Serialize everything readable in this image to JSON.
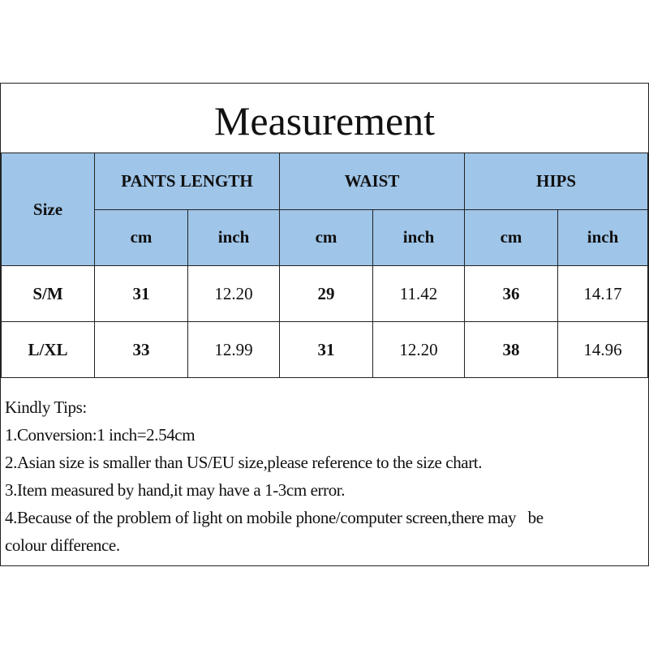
{
  "title": "Measurement",
  "header": {
    "size": "Size",
    "groups": [
      "PANTS LENGTH",
      "WAIST",
      "HIPS"
    ],
    "units": [
      "cm",
      "inch",
      "cm",
      "inch",
      "cm",
      "inch"
    ]
  },
  "rows": [
    {
      "size": "S/M",
      "values": [
        "31",
        "12.20",
        "29",
        "11.42",
        "36",
        "14.17"
      ]
    },
    {
      "size": "L/XL",
      "values": [
        "33",
        "12.99",
        "31",
        "12.20",
        "38",
        "14.96"
      ]
    }
  ],
  "tips": {
    "heading": "Kindly Tips:",
    "lines": [
      "1.Conversion:1 inch=2.54cm",
      "2.Asian size is smaller than US/EU size,please reference to the size chart.",
      "3.Item measured by hand,it may have a 1-3cm error.",
      "4.Because of the problem of light on mobile phone/computer screen,there may   be",
      "colour difference."
    ]
  },
  "colors": {
    "header_bg": "#9fc5e8",
    "border": "#222222"
  }
}
